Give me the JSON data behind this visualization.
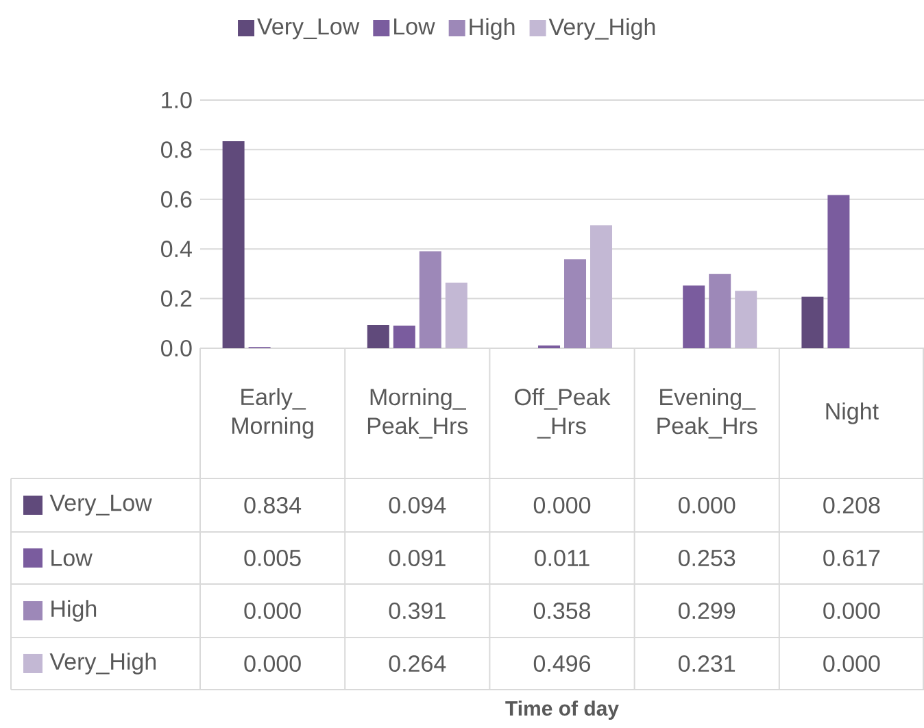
{
  "chart_data": {
    "type": "bar",
    "annotations": [
      "Time of day"
    ],
    "categories": [
      "Early_Morning",
      "Morning_Peak_Hrs",
      "Off_Peak_Hrs",
      "Evening_Peak_Hrs",
      "Night"
    ],
    "series": [
      {
        "name": "Very_Low",
        "color": "#604a7b",
        "values": [
          0.834,
          0.094,
          0.0,
          0.0,
          0.208
        ],
        "value_labels": [
          "0.834",
          "0.094",
          "0.000",
          "0.000",
          "0.208"
        ]
      },
      {
        "name": "Low",
        "color": "#7a5c9e",
        "values": [
          0.005,
          0.091,
          0.011,
          0.253,
          0.617
        ],
        "value_labels": [
          "0.005",
          "0.091",
          "0.011",
          "0.253",
          "0.617"
        ]
      },
      {
        "name": "High",
        "color": "#9d88b8",
        "values": [
          0.0,
          0.391,
          0.358,
          0.299,
          0.0
        ],
        "value_labels": [
          "0.000",
          "0.391",
          "0.358",
          "0.299",
          "0.000"
        ]
      },
      {
        "name": "Very_High",
        "color": "#c3b8d4",
        "values": [
          0.0,
          0.264,
          0.496,
          0.231,
          0.0
        ],
        "value_labels": [
          "0.000",
          "0.264",
          "0.496",
          "0.231",
          "0.000"
        ]
      }
    ],
    "ylim": [
      0,
      1
    ],
    "yticks": [
      {
        "value": 0,
        "label": "0.0"
      },
      {
        "value": 0.2,
        "label": "0.2"
      },
      {
        "value": 0.4,
        "label": "0.4"
      },
      {
        "value": 0.6,
        "label": "0.6"
      },
      {
        "value": 0.8,
        "label": "0.8"
      },
      {
        "value": 1,
        "label": "1.0"
      }
    ],
    "grid": "y",
    "legend": "top"
  }
}
